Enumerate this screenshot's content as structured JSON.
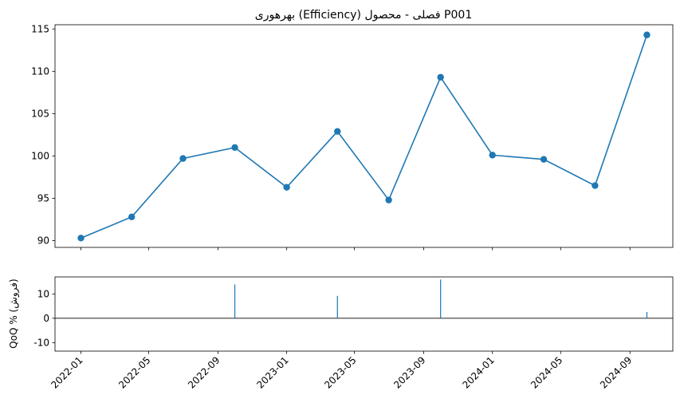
{
  "chart_data": [
    {
      "type": "line",
      "title": "بهرهوری (Efficiency) فصلی - محصول P001",
      "x": [
        "2022-01-01",
        "2022-04-01",
        "2022-07-01",
        "2022-10-01",
        "2023-01-01",
        "2023-04-01",
        "2023-07-01",
        "2023-10-01",
        "2024-01-01",
        "2024-04-01",
        "2024-07-01",
        "2024-10-01"
      ],
      "series": [
        {
          "values": [
            90.3,
            92.8,
            99.7,
            101.0,
            96.3,
            102.9,
            94.8,
            109.3,
            100.1,
            99.6,
            96.5,
            114.3
          ]
        }
      ],
      "ylim": [
        89.2,
        115.5
      ],
      "yticks": [
        90,
        95,
        100,
        105,
        110,
        115
      ],
      "xlim": [
        "2021-11-16",
        "2024-11-16"
      ],
      "grid": false,
      "marker": "circle",
      "color": "#1f77b4"
    },
    {
      "type": "bar",
      "ylabel": "QoQ % (فروش)",
      "x": [
        "2022-10-01",
        "2023-04-01",
        "2023-10-01",
        "2024-10-01"
      ],
      "values": [
        13.9,
        9.2,
        15.9,
        2.6
      ],
      "ylim": [
        -13.5,
        17
      ],
      "yticks": [
        -10,
        0,
        10
      ],
      "xticks": [
        "2022-01",
        "2022-05",
        "2022-09",
        "2023-01",
        "2023-05",
        "2023-09",
        "2024-01",
        "2024-05",
        "2024-09"
      ],
      "zero_line": true,
      "color": "#1f77b4"
    }
  ]
}
